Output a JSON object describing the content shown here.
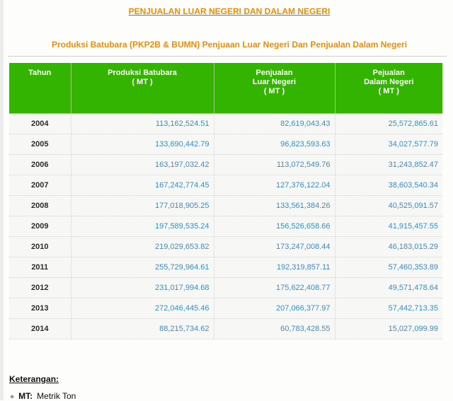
{
  "page": {
    "title": "PENJUALAN LUAR NEGERI DAN DALAM NEGERI",
    "subtitle": "Produksi Batubara (PKP2B & BUMN) Penjuaan Luar Negeri Dan Penjualan Dalam Negeri"
  },
  "table": {
    "headers": [
      {
        "lines": [
          "Tahun"
        ]
      },
      {
        "lines": [
          "Produksi Batubara",
          "( MT )"
        ]
      },
      {
        "lines": [
          "Penjualan",
          "Luar Negeri",
          "( MT )"
        ]
      },
      {
        "lines": [
          "Pejualan",
          "Dalam Negeri",
          "( MT )"
        ]
      }
    ],
    "rows": [
      {
        "year": "2004",
        "produksi": "113,162,524.51",
        "luar": "82,619,043.43",
        "dalam": "25,572,865.61"
      },
      {
        "year": "2005",
        "produksi": "133,690,442.79",
        "luar": "96,823,593.63",
        "dalam": "34,027,577.79"
      },
      {
        "year": "2006",
        "produksi": "163,197,032.42",
        "luar": "113,072,549.76",
        "dalam": "31,243,852.47"
      },
      {
        "year": "2007",
        "produksi": "167,242,774.45",
        "luar": "127,376,122.04",
        "dalam": "38,603,540.34"
      },
      {
        "year": "2008",
        "produksi": "177,018,905.25",
        "luar": "133,561,384.26",
        "dalam": "40,525,091.57"
      },
      {
        "year": "2009",
        "produksi": "197,589,535.24",
        "luar": "156,526,658.66",
        "dalam": "41,915,457.55"
      },
      {
        "year": "2010",
        "produksi": "219,029,653.82",
        "luar": "173,247,008.44",
        "dalam": "46,183,015.29"
      },
      {
        "year": "2011",
        "produksi": "255,729,964.61",
        "luar": "192,319,857.11",
        "dalam": "57,460,353.89"
      },
      {
        "year": "2012",
        "produksi": "231,017,994.68",
        "luar": "175,622,408.77",
        "dalam": "49,571,478.64"
      },
      {
        "year": "2013",
        "produksi": "272,046,445.46",
        "luar": "207,066,377.97",
        "dalam": "57,442,713.35"
      },
      {
        "year": "2014",
        "produksi": "88,215,734.62",
        "luar": "60,783,428.55",
        "dalam": "15,027,099.99"
      }
    ]
  },
  "legend": {
    "heading": "Keterangan:",
    "items": [
      {
        "term": "MT:",
        "desc": "Metrik Ton"
      }
    ]
  },
  "colors": {
    "title_orange": "#f08c00",
    "header_green": "#33b500",
    "number_blue": "#3a8dc8"
  }
}
